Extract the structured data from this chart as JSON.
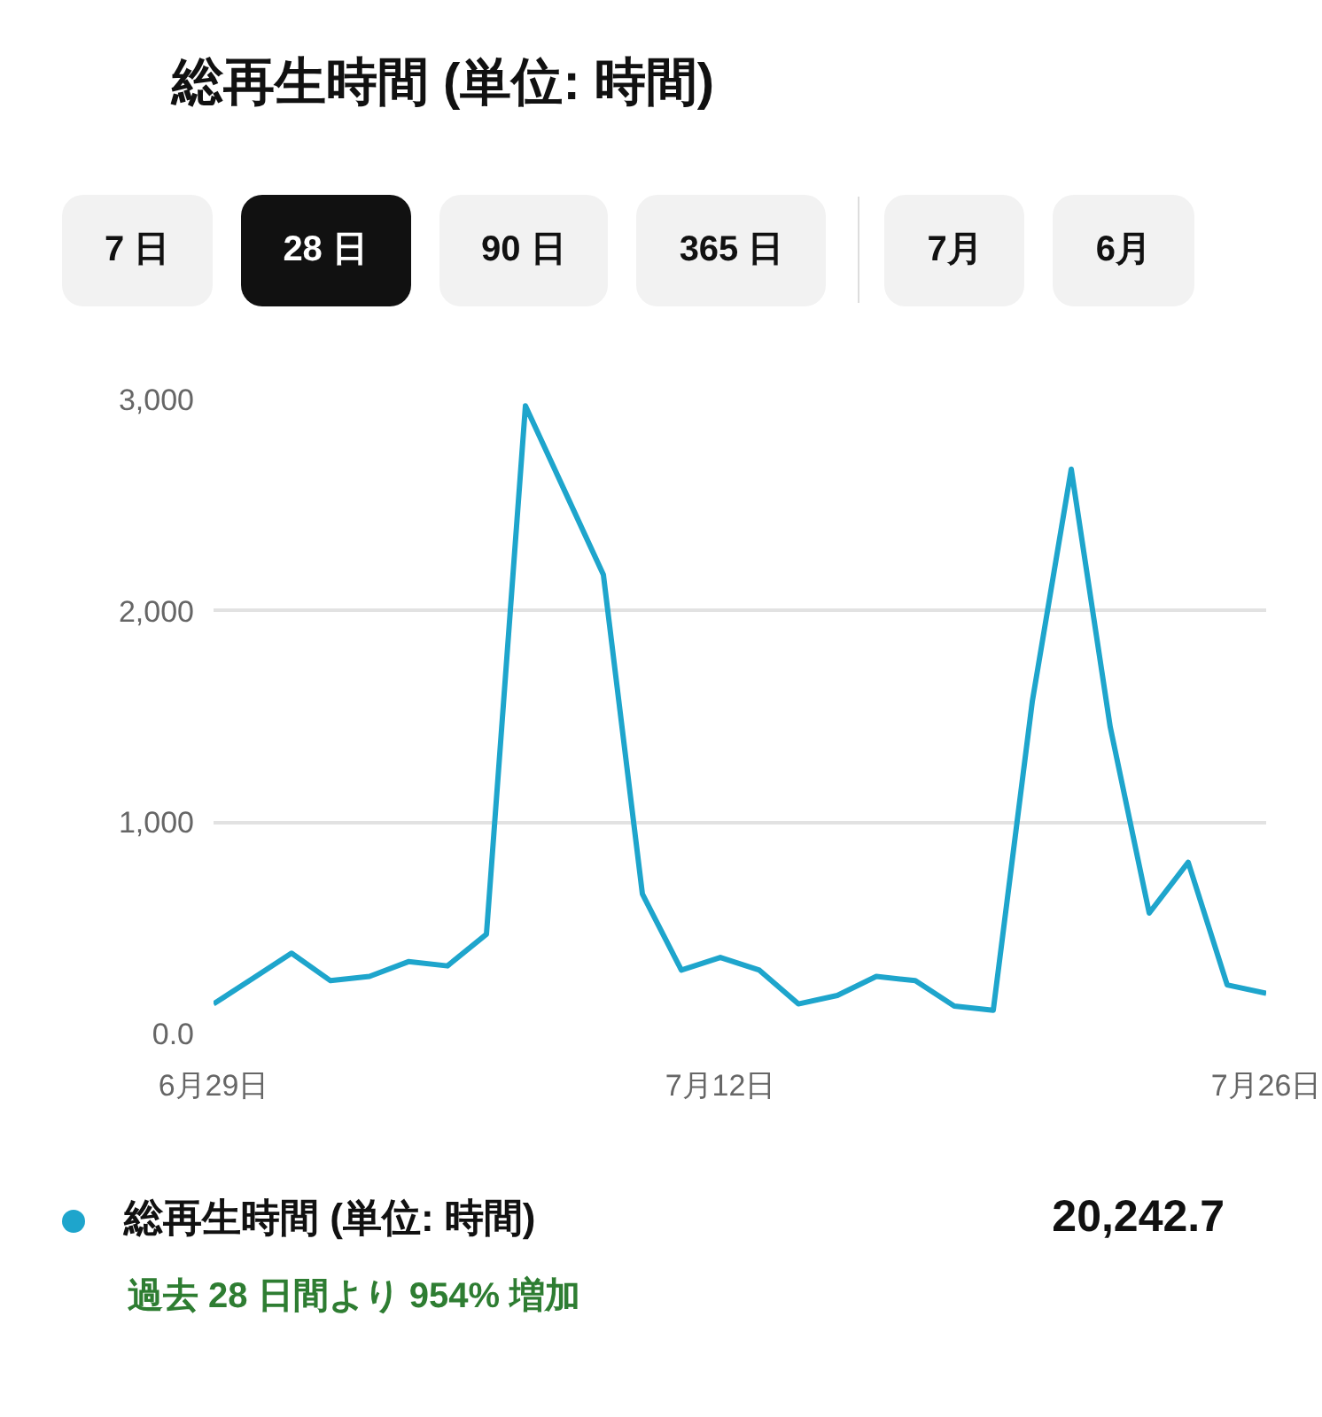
{
  "chart_data": {
    "type": "line",
    "title": "総再生時間 (単位: 時間)",
    "categories": [
      "6月29日",
      null,
      null,
      null,
      null,
      null,
      null,
      null,
      null,
      null,
      null,
      null,
      null,
      "7月12日",
      null,
      null,
      null,
      null,
      null,
      null,
      null,
      null,
      null,
      null,
      null,
      null,
      null,
      "7月26日"
    ],
    "series": [
      {
        "name": "総再生時間 (単位: 時間)",
        "color": "#1ea5cc",
        "values": [
          140,
          260,
          380,
          250,
          270,
          340,
          320,
          470,
          2970,
          2570,
          2170,
          660,
          300,
          360,
          300,
          140,
          180,
          270,
          250,
          130,
          110,
          1570,
          2670,
          1450,
          570,
          810,
          230,
          190
        ]
      }
    ],
    "ylim": [
      0,
      3000
    ],
    "yticks": [
      {
        "value": 0,
        "label": "0.0"
      },
      {
        "value": 1000,
        "label": "1,000"
      },
      {
        "value": 2000,
        "label": "2,000"
      },
      {
        "value": 3000,
        "label": "3,000"
      }
    ],
    "grid": "y",
    "legend": "bottom",
    "marker": "none",
    "line_style": "solid",
    "annotations": [
      "7 日",
      "28 日",
      "90 日",
      "365 日",
      "7月",
      "6月",
      "20,242.7",
      "過去 28 日間より 954% 増加"
    ]
  }
}
